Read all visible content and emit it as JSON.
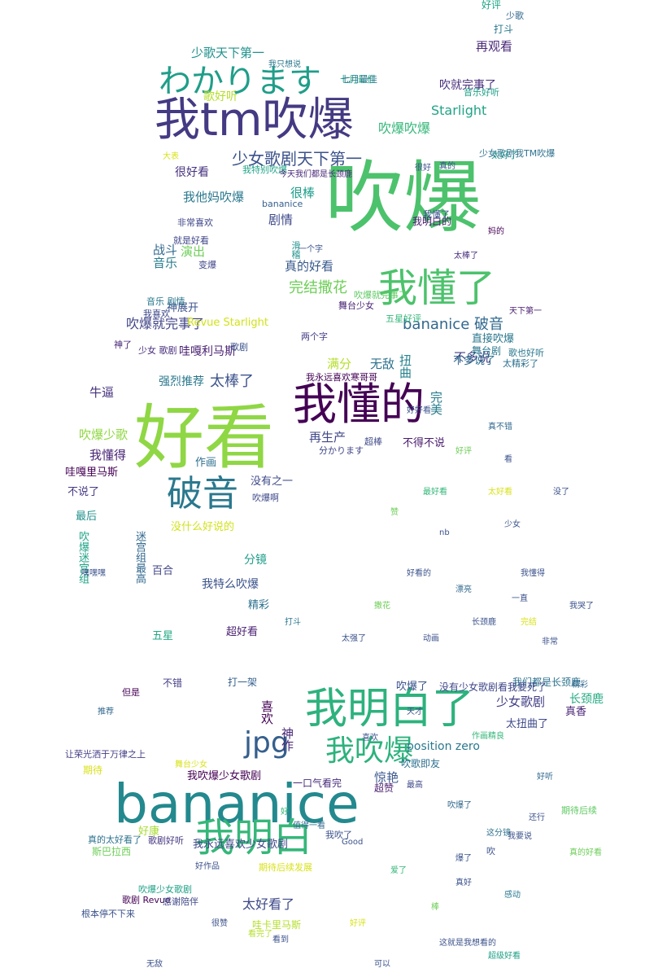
{
  "words": [
    {
      "text": "吹爆",
      "color": "#4cc26c"
    },
    {
      "text": "好看",
      "color": "#8fd744"
    },
    {
      "text": "bananice",
      "color": "#23898e"
    },
    {
      "text": "我tm吹爆",
      "color": "#443a83"
    },
    {
      "text": "我明白了",
      "color": "#2db27d"
    },
    {
      "text": "我懂的",
      "color": "#440154"
    },
    {
      "text": "我明白",
      "color": "#35b779"
    },
    {
      "text": "我懂了",
      "color": "#4cc26c"
    },
    {
      "text": "わかります",
      "color": "#1f9e89"
    },
    {
      "text": "破音",
      "color": "#2a788e"
    },
    {
      "text": "jpg",
      "color": "#355f8d"
    },
    {
      "text": "我吹爆",
      "color": "#2db27d"
    },
    {
      "text": "少女歌剧天下第一",
      "color": "#3b528b"
    },
    {
      "text": "bananice 破音",
      "color": "#31688e"
    },
    {
      "text": "完结撒花",
      "color": "#6ece58"
    },
    {
      "text": "吹爆就完事了",
      "color": "#414487"
    },
    {
      "text": "太棒了",
      "color": "#3b528b"
    },
    {
      "text": "吹爆吹爆",
      "color": "#35b779"
    },
    {
      "text": "少歌天下第一",
      "color": "#21918c"
    },
    {
      "text": "再观看",
      "color": "#482878"
    },
    {
      "text": "吹就完事了",
      "color": "#472d7b"
    },
    {
      "text": "Starlight",
      "color": "#20a486"
    },
    {
      "text": "歌好听",
      "color": "#b5de2b"
    },
    {
      "text": "很好看",
      "color": "#46327e"
    },
    {
      "text": "我他妈吹爆",
      "color": "#2a788e"
    },
    {
      "text": "很棒",
      "color": "#1f9e89"
    },
    {
      "text": "剧情",
      "color": "#3e4989"
    },
    {
      "text": "真的好看",
      "color": "#38598c"
    },
    {
      "text": "战斗",
      "color": "#31688e"
    },
    {
      "text": "演出",
      "color": "#6ece58"
    },
    {
      "text": "音乐",
      "color": "#287d8e"
    },
    {
      "text": "神展开",
      "color": "#3b528b"
    },
    {
      "text": "哇嘎利马斯",
      "color": "#481f70"
    },
    {
      "text": "满分",
      "color": "#b5de2b"
    },
    {
      "text": "无敌",
      "color": "#2c728e"
    },
    {
      "text": "扭曲",
      "color": "#26828e"
    },
    {
      "text": "完美",
      "color": "#287d8e"
    },
    {
      "text": "不多说",
      "color": "#433e85"
    },
    {
      "text": "直接吹爆",
      "color": "#2a788e"
    },
    {
      "text": "强烈推荐",
      "color": "#2a788e"
    },
    {
      "text": "牛逼",
      "color": "#46327e"
    },
    {
      "text": "吹爆少歌",
      "color": "#90d743"
    },
    {
      "text": "我懂得",
      "color": "#482475"
    },
    {
      "text": "再生产",
      "color": "#404688"
    },
    {
      "text": "不得不说",
      "color": "#481b6d"
    },
    {
      "text": "哇嘎里马斯",
      "color": "#440154"
    },
    {
      "text": "作画",
      "color": "#2e6f8e"
    },
    {
      "text": "没有之一",
      "color": "#3e4989"
    },
    {
      "text": "不说了",
      "color": "#443983"
    },
    {
      "text": "最后",
      "color": "#21918c"
    },
    {
      "text": "没什么好说的",
      "color": "#d2e21b"
    },
    {
      "text": "吹爆迷宫组",
      "color": "#20a486"
    },
    {
      "text": "迷宫组最高",
      "color": "#31688e"
    },
    {
      "text": "百合",
      "color": "#414487"
    },
    {
      "text": "分镜",
      "color": "#1f9e89"
    },
    {
      "text": "我特么吹爆",
      "color": "#3b528b"
    },
    {
      "text": "精彩",
      "color": "#2c728e"
    },
    {
      "text": "超好看",
      "color": "#481f70"
    },
    {
      "text": "五星",
      "color": "#22a884"
    },
    {
      "text": "长颈鹿",
      "color": "#25ab82"
    },
    {
      "text": "少女歌剧",
      "color": "#433e85"
    },
    {
      "text": "太扭曲了",
      "color": "#3e4989"
    },
    {
      "text": "position zero",
      "color": "#2a788e"
    },
    {
      "text": "神作",
      "color": "#482878"
    },
    {
      "text": "喜欢",
      "color": "#440154"
    },
    {
      "text": "惊艳",
      "color": "#39568c"
    },
    {
      "text": "我吹爆少女歌剧",
      "color": "#440154"
    },
    {
      "text": "我永远喜欢少女歌剧",
      "color": "#3f4788"
    },
    {
      "text": "太好看了",
      "color": "#3e4989"
    },
    {
      "text": "哇卡里马斯",
      "color": "#b5de2b"
    },
    {
      "text": "斯巴拉西",
      "color": "#6ece58"
    },
    {
      "text": "期待",
      "color": "#d8e219"
    },
    {
      "text": "好康",
      "color": "#a8db34"
    },
    {
      "text": "真香",
      "color": "#482475"
    },
    {
      "text": "不错",
      "color": "#433e85"
    },
    {
      "text": "打一架",
      "color": "#35608d"
    },
    {
      "text": "我们都是长颈鹿",
      "color": "#2c728e"
    },
    {
      "text": "没有少女歌剧看我要死了",
      "color": "#3f4788"
    },
    {
      "text": "吹爆了",
      "color": "#3b528b"
    },
    {
      "text": "吹歌即友",
      "color": "#2d708e"
    },
    {
      "text": "超赞",
      "color": "#481b6d"
    },
    {
      "text": "一口气看完",
      "color": "#472d7b"
    },
    {
      "text": "好评",
      "color": "#20a486"
    },
    {
      "text": "打斗",
      "color": "#2a788e"
    },
    {
      "text": "七月最佳",
      "color": "#22a884"
    },
    {
      "text": "音乐好听",
      "color": "#1fa187"
    },
    {
      "text": "吹爆啊",
      "color": "#3e4989"
    },
    {
      "text": "舞台少女",
      "color": "#482475"
    },
    {
      "text": "滑稽",
      "color": "#21918c"
    },
    {
      "text": "我明白的",
      "color": "#481b6d"
    },
    {
      "text": "少女歌剧我TM吹爆",
      "color": "#2d708e"
    },
    {
      "text": "太精彩了",
      "color": "#2d708e"
    },
    {
      "text": "但是",
      "color": "#440154"
    },
    {
      "text": "让荣光洒于万律之上",
      "color": "#433e85"
    },
    {
      "text": "歌剧 Revue",
      "color": "#440154"
    },
    {
      "text": "根本停不下来",
      "color": "#3b528b"
    },
    {
      "text": "歌剧好听",
      "color": "#453781"
    },
    {
      "text": "感谢陪伴",
      "color": "#3f4788"
    },
    {
      "text": "期待后续发展",
      "color": "#d8e219"
    },
    {
      "text": "真的太好看了",
      "color": "#2c728e"
    },
    {
      "text": "吹爆少女歌剧",
      "color": "#1fa187"
    },
    {
      "text": "超棒",
      "color": "#3e4989"
    },
    {
      "text": "分かります",
      "color": "#404688"
    },
    {
      "text": "Revue Starlight",
      "color": "#d2e21b"
    },
    {
      "text": "舞台剧",
      "color": "#2a788e"
    },
    {
      "text": "不多说了",
      "color": "#2d708e"
    },
    {
      "text": "我永远喜欢寒哥哥",
      "color": "#440154"
    },
    {
      "text": "太好了",
      "color": "#21918c"
    },
    {
      "text": "bananice",
      "color": "#355f8d"
    },
    {
      "text": "非常喜欢",
      "color": "#3f4788"
    },
    {
      "text": "就是好看",
      "color": "#3f4788"
    },
    {
      "text": "我特别吹爆",
      "color": "#20a486"
    },
    {
      "text": "今天我们都是长颈鹿",
      "color": "#482878"
    },
    {
      "text": "神了",
      "color": "#482878"
    },
    {
      "text": "少女 歌剧",
      "color": "#472d7b"
    },
    {
      "text": "音乐 剧情",
      "color": "#2a788e"
    },
    {
      "text": "我喜欢",
      "color": "#3e4989"
    },
    {
      "text": "歌剧",
      "color": "#3b528b"
    },
    {
      "text": "变爆",
      "color": "#404688"
    },
    {
      "text": "我懂了",
      "color": "#3b528b"
    },
    {
      "text": "歌也好听",
      "color": "#2a788e"
    },
    {
      "text": "五星好评",
      "color": "#35b779"
    },
    {
      "text": "七月最佳",
      "color": "#2a788e"
    },
    {
      "text": "吹爆就完事了",
      "color": "#5ec962"
    },
    {
      "text": "两个字",
      "color": "#433e85"
    },
    {
      "text": "天下第一",
      "color": "#481b6d"
    },
    {
      "text": "太棒了",
      "color": "#472d7b"
    },
    {
      "text": "我只想说",
      "color": "#2a788e"
    },
    {
      "text": "少歌",
      "color": "#31688e"
    },
    {
      "text": "很好",
      "color": "#3b528b"
    },
    {
      "text": "期待后续",
      "color": "#5ec962"
    },
    {
      "text": "真的好看",
      "color": "#6ece58"
    },
    {
      "text": "看完了",
      "color": "#b5de2b"
    },
    {
      "text": "这就是我想看的",
      "color": "#3b528b"
    },
    {
      "text": "这分镜",
      "color": "#2c728e"
    },
    {
      "text": "我要说",
      "color": "#3b528b"
    },
    {
      "text": "好听",
      "color": "#31688e"
    },
    {
      "text": "天才",
      "color": "#3b528b"
    },
    {
      "text": "打斗",
      "color": "#2a788e"
    },
    {
      "text": "喜欢",
      "color": "#3b528b"
    },
    {
      "text": "最高",
      "color": "#3e4989"
    },
    {
      "text": "吹爆了",
      "color": "#31688e"
    },
    {
      "text": "Good",
      "color": "#3b528b"
    },
    {
      "text": "爆了",
      "color": "#3b528b"
    },
    {
      "text": "作画精良",
      "color": "#35b779"
    },
    {
      "text": "我吹了",
      "color": "#3b528b"
    },
    {
      "text": "舞台少女",
      "color": "#d8e219"
    },
    {
      "text": "吹",
      "color": "#3b528b"
    },
    {
      "text": "好",
      "color": "#35b779"
    },
    {
      "text": "一个字",
      "color": "#3b528b"
    },
    {
      "text": "感动",
      "color": "#2a788e"
    },
    {
      "text": "看到",
      "color": "#3b528b"
    },
    {
      "text": "好评",
      "color": "#d8e219"
    },
    {
      "text": "可以",
      "color": "#3b528b"
    },
    {
      "text": "真好",
      "color": "#3b528b"
    },
    {
      "text": "值得一看",
      "color": "#31688e"
    },
    {
      "text": "好作品",
      "color": "#3b528b"
    },
    {
      "text": "推荐",
      "color": "#31688e"
    },
    {
      "text": "很赞",
      "color": "#3b528b"
    },
    {
      "text": "棒",
      "color": "#6ece58"
    },
    {
      "text": "爱了",
      "color": "#35b779"
    },
    {
      "text": "无敌",
      "color": "#3b528b"
    },
    {
      "text": "真的",
      "color": "#3b528b"
    },
    {
      "text": "妈的",
      "color": "#440154"
    },
    {
      "text": "大表",
      "color": "#d8e219"
    },
    {
      "text": "超级好看",
      "color": "#1fa187"
    },
    {
      "text": "还行",
      "color": "#3b528b"
    },
    {
      "text": "嘿嘿嘿",
      "color": "#3b528b"
    },
    {
      "text": "我懂得",
      "color": "#3b528b"
    },
    {
      "text": "最好看",
      "color": "#35b779"
    },
    {
      "text": "太好看",
      "color": "#d8e219"
    },
    {
      "text": "赞",
      "color": "#6ece58"
    },
    {
      "text": "nb",
      "color": "#3b528b"
    },
    {
      "text": "少女",
      "color": "#3b528b"
    },
    {
      "text": "真不错",
      "color": "#31688e"
    },
    {
      "text": "好评",
      "color": "#6ece58"
    },
    {
      "text": "好好看",
      "color": "#3b528b"
    },
    {
      "text": "看",
      "color": "#3b528b"
    },
    {
      "text": "没了",
      "color": "#3b528b"
    },
    {
      "text": "好看的",
      "color": "#3b528b"
    },
    {
      "text": "漂亮",
      "color": "#31688e"
    },
    {
      "text": "长颈鹿",
      "color": "#3b528b"
    },
    {
      "text": "动画",
      "color": "#3b528b"
    },
    {
      "text": "完结",
      "color": "#d8e219"
    },
    {
      "text": "我哭了",
      "color": "#3b528b"
    },
    {
      "text": "撒花",
      "color": "#6ece58"
    },
    {
      "text": "太强了",
      "color": "#3b528b"
    },
    {
      "text": "一直",
      "color": "#3b528b"
    },
    {
      "text": "非常",
      "color": "#3b528b"
    },
    {
      "text": "精彩",
      "color": "#31688e"
    }
  ]
}
